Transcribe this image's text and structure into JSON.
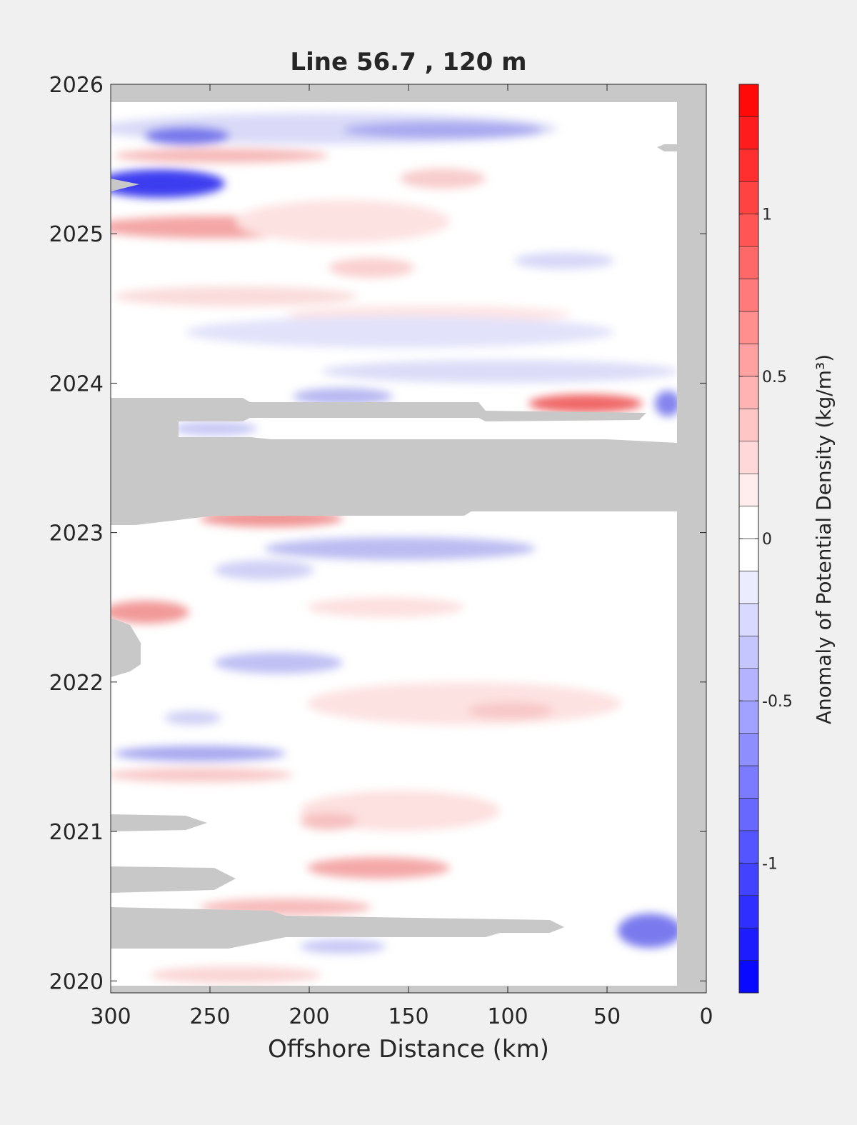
{
  "chart_data": {
    "type": "contour",
    "title": "Line 56.7 , 120 m",
    "xlabel": "Offshore Distance (km)",
    "xlim": [
      300,
      0
    ],
    "xticks": [
      300,
      250,
      200,
      150,
      100,
      50,
      0
    ],
    "ylim": [
      2019.92,
      2026
    ],
    "yticks": [
      2020,
      2021,
      2022,
      2023,
      2024,
      2025,
      2026
    ],
    "nan_color": "#c8c8c8",
    "colorbar": {
      "label": "Anomaly of Potential Density (kg/m³)",
      "clim": [
        -1.4,
        1.4
      ],
      "ticks": [
        -1,
        -0.5,
        0,
        0.5,
        1
      ],
      "levels": [
        -1.4,
        -1.3,
        -1.2,
        -1.1,
        -1,
        -0.9,
        -0.8,
        -0.7,
        -0.6,
        -0.5,
        -0.4,
        -0.3,
        -0.2,
        -0.1,
        0,
        0.1,
        0.2,
        0.3,
        0.4,
        0.5,
        0.6,
        0.7,
        0.8,
        0.9,
        1,
        1.1,
        1.2,
        1.3,
        1.4
      ],
      "colors": [
        "#0000ff",
        "#ffffff",
        "#ff0000"
      ]
    }
  }
}
